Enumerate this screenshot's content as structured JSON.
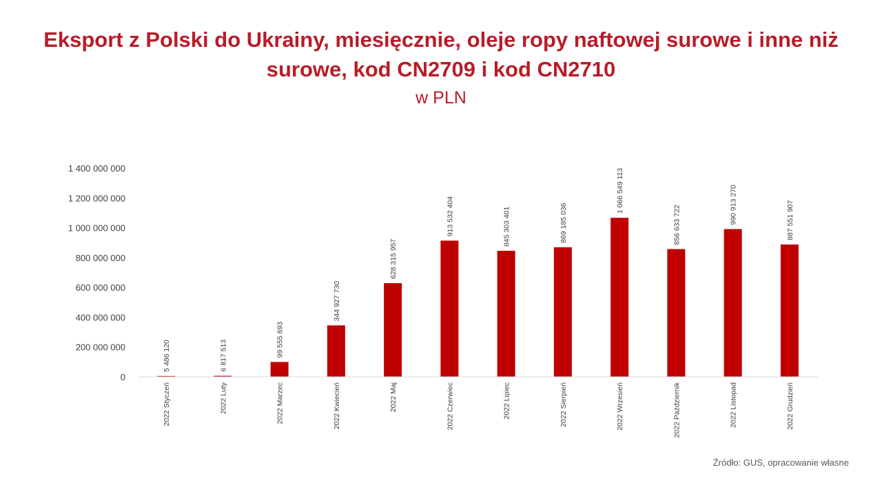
{
  "title": "Eksport z Polski do Ukrainy, miesięcznie, oleje ropy naftowej surowe i inne niż surowe, kod CN2709 i kod CN2710",
  "subtitle": "w PLN",
  "source": "Źródło: GUS, opracowanie własne",
  "colors": {
    "title": "#b81c28",
    "bar": "#c00000",
    "axis": "#d9d9d9",
    "text": "#404040"
  },
  "chart_data": {
    "type": "bar",
    "title": "Eksport z Polski do Ukrainy, miesięcznie, oleje ropy naftowej surowe i inne niż surowe, kod CN2709 i kod CN2710",
    "subtitle": "w PLN",
    "xlabel": "",
    "ylabel": "",
    "ylim": [
      0,
      1400000000
    ],
    "yticks": [
      0,
      200000000,
      400000000,
      600000000,
      800000000,
      1000000000,
      1200000000,
      1400000000
    ],
    "ytick_labels": [
      "0",
      "200 000 000",
      "400 000 000",
      "600 000 000",
      "800 000 000",
      "1 000 000 000",
      "1 200 000 000",
      "1 400 000 000"
    ],
    "grid": false,
    "legend": "none",
    "categories": [
      "2022 Styczeń",
      "2022 Luty",
      "2022 Marzec",
      "2022 Kwiecień",
      "2022 Maj",
      "2022 Czerwiec",
      "2022 Lipiec",
      "2022 Sierpień",
      "2022 Wrzesień",
      "2022 Październik",
      "2022 Listopad",
      "2022 Grudzień"
    ],
    "values": [
      5486120,
      6817513,
      99555693,
      344927730,
      628315957,
      913532404,
      845303401,
      869185036,
      1066549113,
      856633722,
      990913270,
      887551907
    ],
    "data_labels": [
      "5 486 120",
      "6 817 513",
      "99 555 693",
      "344 927 730",
      "628 315 957",
      "913 532 404",
      "845 303 401",
      "869 185 036",
      "1 066 549 113",
      "856 633 722",
      "990 913 270",
      "887 551 907"
    ]
  }
}
